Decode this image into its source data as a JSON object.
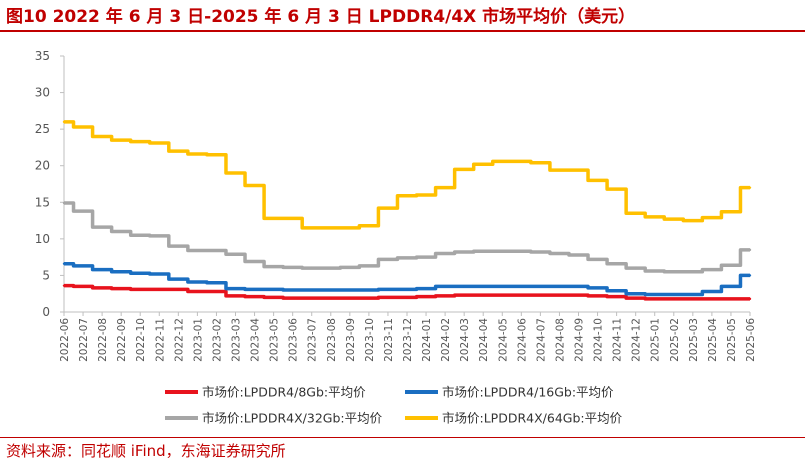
{
  "title": "图10  2022 年 6 月 3 日-2025 年 6 月 3 日 LPDDR4/4X 市场平均价（美元）",
  "source": "资料来源：同花顺 iFind，东海证券研究所",
  "colors": {
    "accent": "#c00000",
    "axis": "#bfbfbf"
  },
  "chart_data": {
    "type": "line",
    "title": "2022 年 6 月 3 日-2025 年 6 月 3 日 LPDDR4/4X 市场平均价（美元）",
    "ylim": [
      0,
      35
    ],
    "yticks": [
      0,
      5,
      10,
      15,
      20,
      25,
      30,
      35
    ],
    "grid": false,
    "legend_position": "bottom",
    "categories": [
      "2022-06",
      "2022-07",
      "2022-08",
      "2022-09",
      "2022-10",
      "2022-11",
      "2022-12",
      "2023-01",
      "2023-02",
      "2023-03",
      "2023-04",
      "2023-05",
      "2023-06",
      "2023-07",
      "2023-08",
      "2023-09",
      "2023-10",
      "2023-11",
      "2023-12",
      "2024-01",
      "2024-02",
      "2024-03",
      "2024-04",
      "2024-05",
      "2024-06",
      "2024-07",
      "2024-08",
      "2024-09",
      "2024-10",
      "2024-11",
      "2024-12",
      "2025-01",
      "2025-02",
      "2025-03",
      "2025-04",
      "2025-05",
      "2025-06"
    ],
    "series": [
      {
        "name": "市场价:LPDDR4/8Gb:平均价",
        "color": "#e8131d",
        "values": [
          3.6,
          3.5,
          3.3,
          3.2,
          3.1,
          3.1,
          3.1,
          2.8,
          2.8,
          2.2,
          2.1,
          2.0,
          1.9,
          1.9,
          1.9,
          1.9,
          1.9,
          2.0,
          2.0,
          2.1,
          2.2,
          2.3,
          2.3,
          2.3,
          2.3,
          2.3,
          2.3,
          2.3,
          2.2,
          2.1,
          1.9,
          1.8,
          1.8,
          1.8,
          1.8,
          1.8,
          1.8
        ]
      },
      {
        "name": "市场价:LPDDR4/16Gb:平均价",
        "color": "#1a6ec1",
        "values": [
          6.6,
          6.3,
          5.8,
          5.5,
          5.3,
          5.2,
          4.5,
          4.1,
          4.0,
          3.2,
          3.1,
          3.1,
          3.0,
          3.0,
          3.0,
          3.0,
          3.0,
          3.1,
          3.1,
          3.2,
          3.5,
          3.5,
          3.5,
          3.5,
          3.5,
          3.5,
          3.5,
          3.5,
          3.3,
          2.9,
          2.5,
          2.4,
          2.4,
          2.4,
          2.8,
          3.5,
          5.0
        ]
      },
      {
        "name": "市场价:LPDDR4X/32Gb:平均价",
        "color": "#a6a6a6",
        "values": [
          14.9,
          13.8,
          11.6,
          11.0,
          10.5,
          10.4,
          9.0,
          8.4,
          8.4,
          7.9,
          6.9,
          6.2,
          6.1,
          6.0,
          6.0,
          6.1,
          6.3,
          7.2,
          7.4,
          7.5,
          8.0,
          8.2,
          8.3,
          8.3,
          8.3,
          8.2,
          8.0,
          7.8,
          7.2,
          6.6,
          6.0,
          5.6,
          5.5,
          5.5,
          5.8,
          6.4,
          8.5
        ]
      },
      {
        "name": "市场价:LPDDR4X/64Gb:平均价",
        "color": "#ffc000",
        "values": [
          26.0,
          25.3,
          24.0,
          23.5,
          23.3,
          23.1,
          22.0,
          21.6,
          21.5,
          19.0,
          17.3,
          12.8,
          12.8,
          11.5,
          11.5,
          11.5,
          11.8,
          14.2,
          15.9,
          16.0,
          17.0,
          19.5,
          20.2,
          20.6,
          20.6,
          20.4,
          19.4,
          19.4,
          18.0,
          16.8,
          13.5,
          13.0,
          12.7,
          12.5,
          12.9,
          13.7,
          17.0
        ]
      }
    ]
  }
}
